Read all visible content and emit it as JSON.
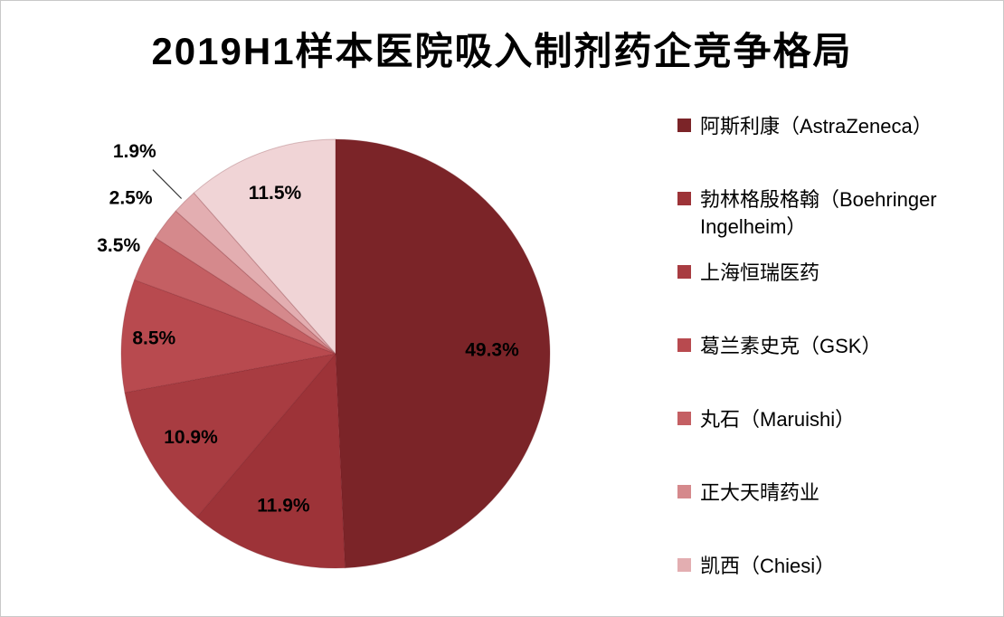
{
  "page": {
    "title": "2019H1样本医院吸入制剂药企竞争格局"
  },
  "chart_data": {
    "type": "pie",
    "title": "2019H1样本医院吸入制剂药企竞争格局",
    "unit": "%",
    "direction": "clockwise",
    "start_angle": 0,
    "legend_position": "right",
    "grid": false,
    "slices": [
      {
        "label": "阿斯利康（AstraZeneca）",
        "value": 49.3,
        "color": "#7B2428",
        "label_placement": "inside",
        "label_r": 0.73
      },
      {
        "label": "勃林格殷格翰（Boehringer Ingelheim）",
        "value": 11.9,
        "color": "#9D3338",
        "label_placement": "inside",
        "label_r": 0.75
      },
      {
        "label": "上海恒瑞医药",
        "value": 10.9,
        "color": "#A83C41",
        "label_placement": "inside",
        "label_r": 0.78
      },
      {
        "label": "葛兰素史克（GSK）",
        "value": 8.5,
        "color": "#B84A4F",
        "label_placement": "inside",
        "label_r": 0.85
      },
      {
        "label": "丸石（Maruishi）",
        "value": 3.5,
        "color": "#C45F63",
        "label_placement": "outside",
        "label_r": 1.13
      },
      {
        "label": "正大天晴药业",
        "value": 2.5,
        "color": "#D5898C",
        "label_placement": "outside",
        "label_r": 1.2
      },
      {
        "label": "凯西（Chiesi）",
        "value": 1.9,
        "color": "#E3AEB1",
        "label_placement": "outside",
        "label_r": 1.33,
        "leader_line": true
      },
      {
        "label": "",
        "value": 11.5,
        "color": "#F0D4D6",
        "label_placement": "inside",
        "label_r": 0.8
      }
    ],
    "legend": [
      {
        "label": "阿斯利康（AstraZeneca）",
        "color": "#7B2428"
      },
      {
        "label": "勃林格殷格翰（Boehringer Ingelheim）",
        "color": "#9D3338"
      },
      {
        "label": "上海恒瑞医药",
        "color": "#A83C41"
      },
      {
        "label": "葛兰素史克（GSK）",
        "color": "#B84A4F"
      },
      {
        "label": "丸石（Maruishi）",
        "color": "#C45F63"
      },
      {
        "label": "正大天晴药业",
        "color": "#D5898C"
      },
      {
        "label": "凯西（Chiesi）",
        "color": "#E3AEB1"
      }
    ]
  }
}
